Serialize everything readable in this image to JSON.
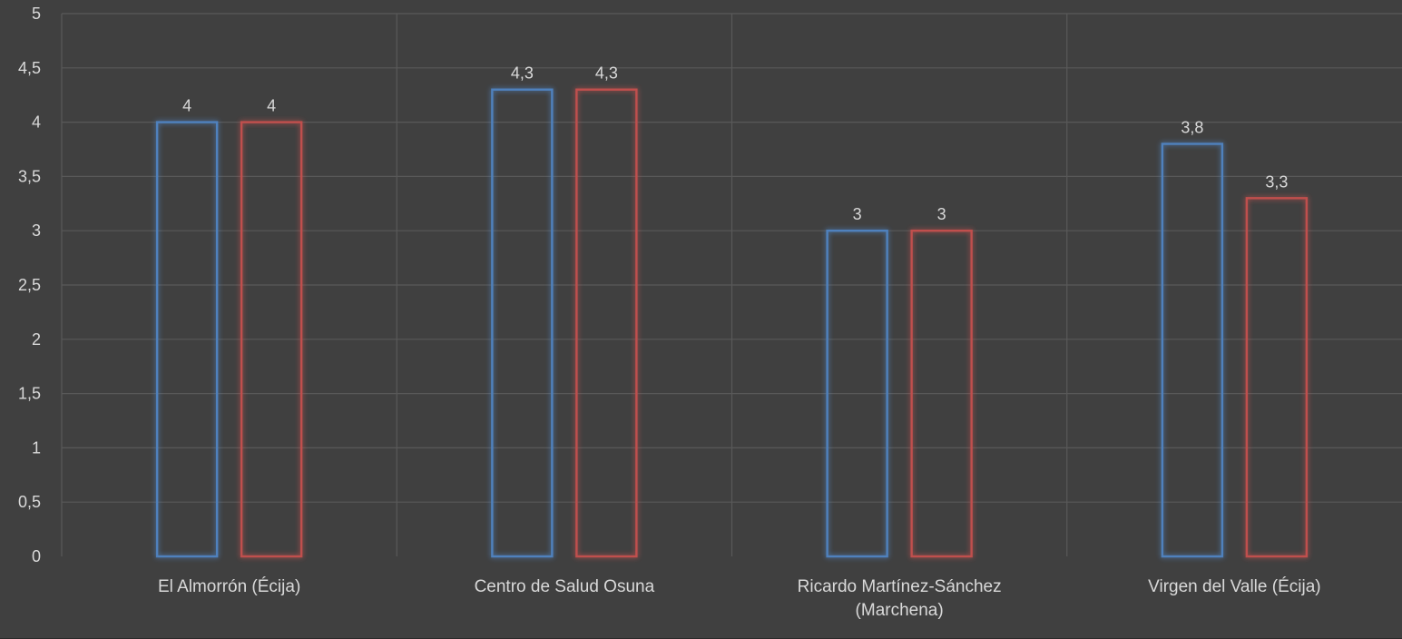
{
  "chart_data": {
    "type": "bar",
    "title": "",
    "xlabel": "",
    "ylabel": "",
    "categories": [
      [
        "El Almorrón (Écija)"
      ],
      [
        "Centro de Salud Osuna"
      ],
      [
        "Ricardo Martínez-Sánchez",
        "(Marchena)"
      ],
      [
        "Virgen del Valle (Écija)"
      ]
    ],
    "series": [
      {
        "color": "#4f81bd",
        "values": [
          4,
          4.3,
          3,
          3.8
        ],
        "labels": [
          "4",
          "4,3",
          "3",
          "3,8"
        ]
      },
      {
        "color": "#c0504d",
        "values": [
          4,
          4.3,
          3,
          3.3
        ],
        "labels": [
          "4",
          "4,3",
          "3",
          "3,3"
        ]
      }
    ],
    "ylim": [
      0,
      5
    ],
    "yticks": [
      0,
      0.5,
      1,
      1.5,
      2,
      2.5,
      3,
      3.5,
      4,
      4.5,
      5
    ],
    "ytick_labels": [
      "0",
      "0,5",
      "1",
      "1,5",
      "2",
      "2,5",
      "3",
      "3,5",
      "4",
      "4,5",
      "5"
    ],
    "grid": true,
    "legend": "none"
  }
}
